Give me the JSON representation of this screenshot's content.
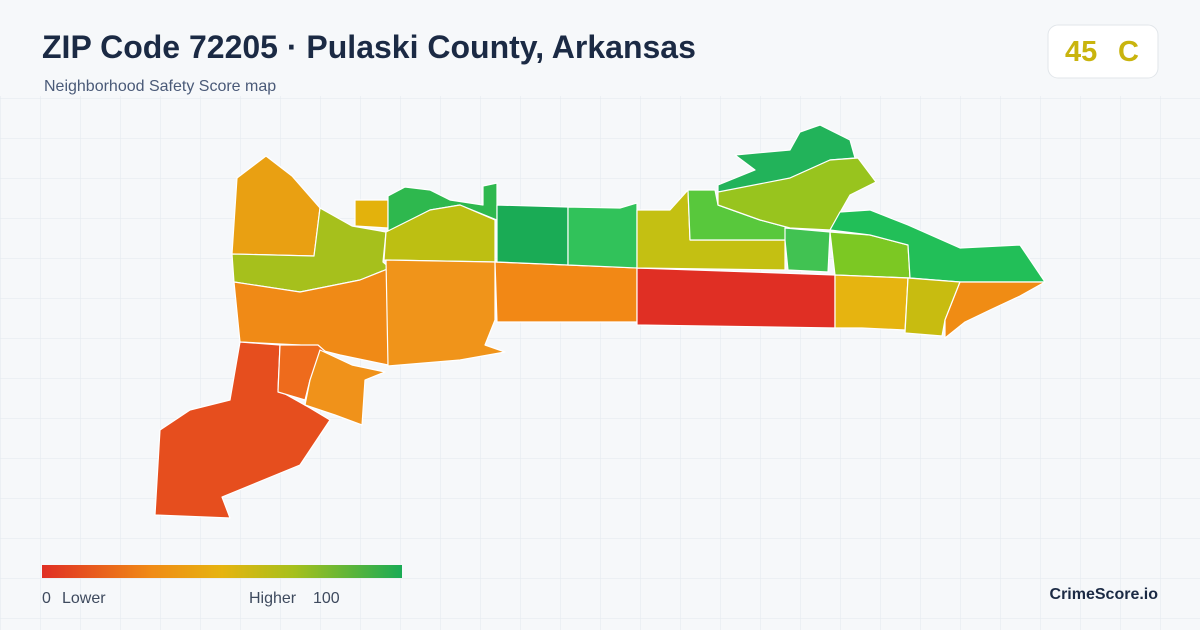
{
  "header": {
    "title": "ZIP Code 72205 · Pulaski County, Arkansas",
    "subtitle": "Neighborhood Safety Score map"
  },
  "badge": {
    "score": 45,
    "grade": "C"
  },
  "legend": {
    "min": 0,
    "min_label": "Lower",
    "max_label": "Higher",
    "max": 100
  },
  "footer": {
    "brand": "CrimeScore.io"
  }
}
